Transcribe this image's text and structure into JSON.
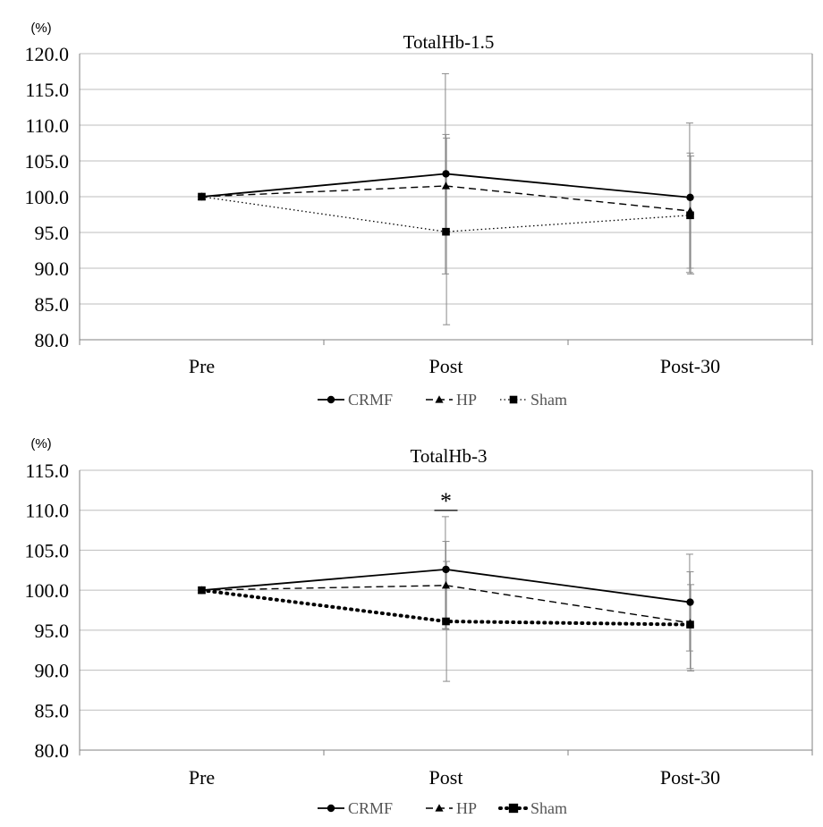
{
  "chart_data": [
    {
      "type": "line",
      "title": "TotalHb-1.5",
      "unit_label": "(%)",
      "categories": [
        "Pre",
        "Post",
        "Post-30"
      ],
      "ylim": [
        80.0,
        120.0
      ],
      "yticks": [
        80.0,
        85.0,
        90.0,
        95.0,
        100.0,
        105.0,
        110.0,
        115.0,
        120.0
      ],
      "grid": true,
      "legend_position": "bottom",
      "annotations": [],
      "series": [
        {
          "name": "CRMF",
          "values": [
            100.0,
            103.2,
            99.9
          ],
          "error_low": [
            100.0,
            89.2,
            89.4
          ],
          "error_high": [
            100.0,
            117.2,
            110.3
          ],
          "line": "solid",
          "marker": "circle"
        },
        {
          "name": "HP",
          "values": [
            100.0,
            101.5,
            98.0
          ],
          "error_low": [
            100.0,
            94.9,
            90.0
          ],
          "error_high": [
            100.0,
            108.7,
            106.1
          ],
          "line": "dashed",
          "marker": "triangle"
        },
        {
          "name": "Sham",
          "values": [
            100.0,
            95.1,
            97.4
          ],
          "error_low": [
            100.0,
            82.1,
            89.2
          ],
          "error_high": [
            100.0,
            108.2,
            105.7
          ],
          "line": "dotted",
          "marker": "square"
        }
      ]
    },
    {
      "type": "line",
      "title": "TotalHb-3",
      "unit_label": "(%)",
      "categories": [
        "Pre",
        "Post",
        "Post-30"
      ],
      "ylim": [
        80.0,
        115.0
      ],
      "yticks": [
        80.0,
        85.0,
        90.0,
        95.0,
        100.0,
        105.0,
        110.0,
        115.0
      ],
      "grid": true,
      "legend_position": "bottom",
      "annotations": [
        {
          "text": "*",
          "category": "Post"
        }
      ],
      "series": [
        {
          "name": "CRMF",
          "values": [
            100.0,
            102.6,
            98.5
          ],
          "error_low": [
            100.0,
            95.2,
            92.4
          ],
          "error_high": [
            100.0,
            109.2,
            104.5
          ],
          "line": "solid",
          "marker": "circle"
        },
        {
          "name": "HP",
          "values": [
            100.0,
            100.6,
            95.9
          ],
          "error_low": [
            100.0,
            95.1,
            90.2
          ],
          "error_high": [
            100.0,
            106.1,
            102.3
          ],
          "line": "dashed",
          "marker": "triangle"
        },
        {
          "name": "Sham",
          "values": [
            100.0,
            96.1,
            95.7
          ],
          "error_low": [
            100.0,
            88.6,
            89.9
          ],
          "error_high": [
            100.0,
            103.6,
            100.7
          ],
          "line": "dotted-bold",
          "marker": "square"
        }
      ]
    }
  ]
}
